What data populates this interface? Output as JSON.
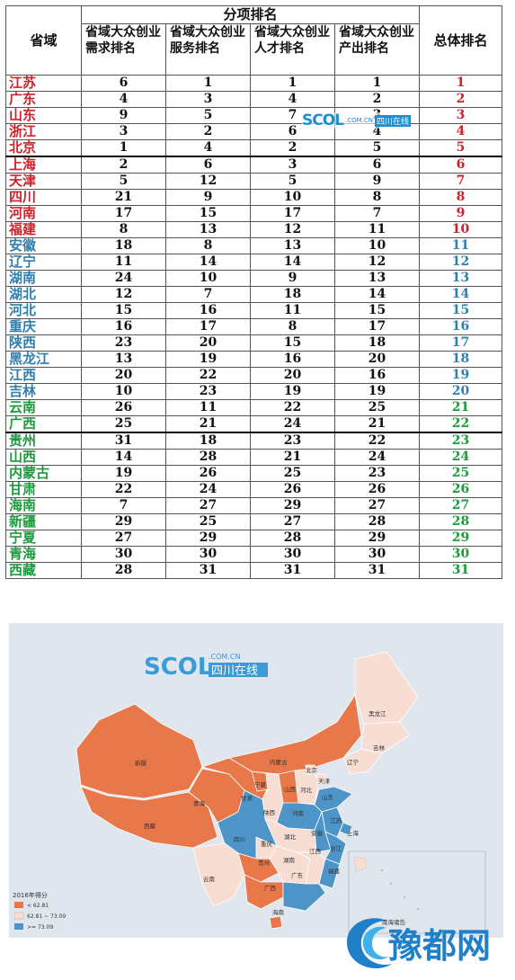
{
  "table": {
    "header_province": "省域",
    "header_group": "分项排名",
    "header_demand": "省域大众创业需求排名",
    "header_service": "省域大众创业服务排名",
    "header_talent": "省域大众创业人才排名",
    "header_output": "省域大众创业产出排名",
    "header_overall": "总体排名",
    "rows": [
      {
        "province": "江苏",
        "demand": "6",
        "service": "1",
        "talent": "1",
        "output": "1",
        "overall": "1"
      },
      {
        "province": "广东",
        "demand": "4",
        "service": "3",
        "talent": "4",
        "output": "2",
        "overall": "2"
      },
      {
        "province": "山东",
        "demand": "9",
        "service": "5",
        "talent": "7",
        "output": "3",
        "overall": "3"
      },
      {
        "province": "浙江",
        "demand": "3",
        "service": "2",
        "talent": "6",
        "output": "4",
        "overall": "4"
      },
      {
        "province": "北京",
        "demand": "1",
        "service": "4",
        "talent": "2",
        "output": "5",
        "overall": "5"
      },
      {
        "province": "上海",
        "demand": "2",
        "service": "6",
        "talent": "3",
        "output": "6",
        "overall": "6"
      },
      {
        "province": "天津",
        "demand": "5",
        "service": "12",
        "talent": "5",
        "output": "9",
        "overall": "7"
      },
      {
        "province": "四川",
        "demand": "21",
        "service": "9",
        "talent": "10",
        "output": "8",
        "overall": "8"
      },
      {
        "province": "河南",
        "demand": "17",
        "service": "15",
        "talent": "17",
        "output": "7",
        "overall": "9"
      },
      {
        "province": "福建",
        "demand": "8",
        "service": "13",
        "talent": "12",
        "output": "11",
        "overall": "10"
      },
      {
        "province": "安徽",
        "demand": "18",
        "service": "8",
        "talent": "13",
        "output": "10",
        "overall": "11"
      },
      {
        "province": "辽宁",
        "demand": "11",
        "service": "14",
        "talent": "14",
        "output": "12",
        "overall": "12"
      },
      {
        "province": "湖南",
        "demand": "24",
        "service": "10",
        "talent": "9",
        "output": "13",
        "overall": "13"
      },
      {
        "province": "湖北",
        "demand": "12",
        "service": "7",
        "talent": "18",
        "output": "14",
        "overall": "14"
      },
      {
        "province": "河北",
        "demand": "15",
        "service": "16",
        "talent": "11",
        "output": "15",
        "overall": "15"
      },
      {
        "province": "重庆",
        "demand": "16",
        "service": "17",
        "talent": "8",
        "output": "17",
        "overall": "16"
      },
      {
        "province": "陕西",
        "demand": "23",
        "service": "20",
        "talent": "15",
        "output": "18",
        "overall": "17"
      },
      {
        "province": "黑龙江",
        "demand": "13",
        "service": "19",
        "talent": "16",
        "output": "20",
        "overall": "18"
      },
      {
        "province": "江西",
        "demand": "20",
        "service": "22",
        "talent": "20",
        "output": "16",
        "overall": "19"
      },
      {
        "province": "吉林",
        "demand": "10",
        "service": "23",
        "talent": "19",
        "output": "19",
        "overall": "20"
      },
      {
        "province": "云南",
        "demand": "26",
        "service": "11",
        "talent": "22",
        "output": "25",
        "overall": "21"
      },
      {
        "province": "广西",
        "demand": "25",
        "service": "21",
        "talent": "24",
        "output": "21",
        "overall": "22"
      },
      {
        "province": "贵州",
        "demand": "31",
        "service": "18",
        "talent": "23",
        "output": "22",
        "overall": "23"
      },
      {
        "province": "山西",
        "demand": "14",
        "service": "28",
        "talent": "21",
        "output": "24",
        "overall": "24"
      },
      {
        "province": "内蒙古",
        "demand": "19",
        "service": "26",
        "talent": "25",
        "output": "23",
        "overall": "25"
      },
      {
        "province": "甘肃",
        "demand": "22",
        "service": "24",
        "talent": "26",
        "output": "26",
        "overall": "26"
      },
      {
        "province": "海南",
        "demand": "7",
        "service": "27",
        "talent": "29",
        "output": "27",
        "overall": "27"
      },
      {
        "province": "新疆",
        "demand": "29",
        "service": "25",
        "talent": "27",
        "output": "28",
        "overall": "28"
      },
      {
        "province": "宁夏",
        "demand": "27",
        "service": "29",
        "talent": "28",
        "output": "29",
        "overall": "29"
      },
      {
        "province": "青海",
        "demand": "30",
        "service": "30",
        "talent": "30",
        "output": "30",
        "overall": "30"
      },
      {
        "province": "西藏",
        "demand": "28",
        "service": "31",
        "talent": "31",
        "output": "31",
        "overall": "31"
      }
    ]
  },
  "watermark": {
    "text": "SCOL",
    "domain": ".COM.CN",
    "name": "四川在线"
  },
  "map": {
    "brand_text": "SCOL",
    "brand_domain": ".COM.CN",
    "brand_name": "四川在线",
    "legend_title": "2016年得分",
    "legend_low": "< 62.81",
    "legend_mid": "62.81 ~ 73.09",
    "legend_high": ">= 73.09",
    "islands_label": "南海诸岛",
    "labels": {
      "xinjiang": "新疆",
      "xizang": "西藏",
      "qinghai": "青海",
      "gansu": "甘肃",
      "neimenggu": "内蒙古",
      "ningxia": "宁夏",
      "shaanxi": "陕西",
      "shanxi": "山西",
      "hebei": "河北",
      "beijing": "北京",
      "tianjin": "天津",
      "liaoning": "辽宁",
      "jilin": "吉林",
      "heilongjiang": "黑龙江",
      "shandong": "山东",
      "henan": "河南",
      "jiangsu": "江苏",
      "anhui": "安徽",
      "shanghai": "上海",
      "zhejiang": "浙江",
      "hubei": "湖北",
      "sichuan": "四川",
      "chongqing": "重庆",
      "guizhou": "贵州",
      "hunan": "湖南",
      "jiangxi": "江西",
      "fujian": "福建",
      "yunnan": "云南",
      "guangxi": "广西",
      "guangdong": "广东",
      "hainan": "海南"
    },
    "colors": {
      "low": "#e8774a",
      "mid": "#f8ddd2",
      "high": "#4d95c8",
      "sea": "#dfe6ee"
    }
  },
  "footer_logo": {
    "text": "豫都网"
  }
}
